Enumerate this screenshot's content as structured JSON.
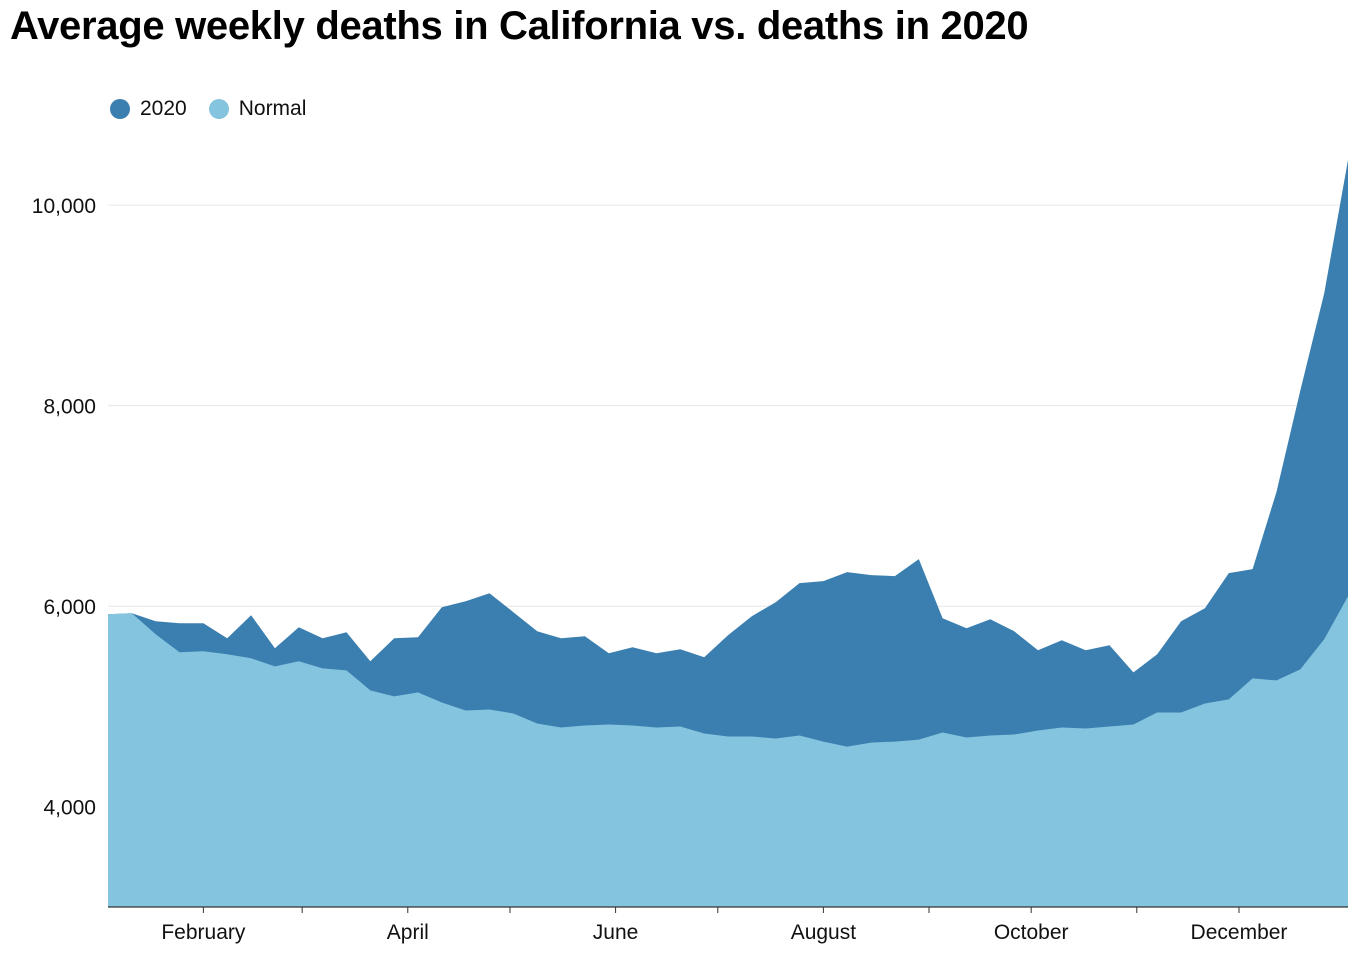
{
  "chart_data": {
    "type": "area",
    "title": "Average weekly deaths in California vs. deaths in 2020",
    "series": [
      {
        "name": "2020",
        "color": "#3a7fb0",
        "values": [
          5920,
          5930,
          5850,
          5830,
          5830,
          5680,
          5910,
          5580,
          5790,
          5680,
          5740,
          5450,
          5680,
          5690,
          5990,
          6050,
          6130,
          5940,
          5750,
          5680,
          5700,
          5530,
          5590,
          5530,
          5570,
          5490,
          5710,
          5900,
          6040,
          6230,
          6250,
          6340,
          6310,
          6300,
          6470,
          5880,
          5780,
          5870,
          5750,
          5560,
          5660,
          5560,
          5610,
          5340,
          5520,
          5850,
          5980,
          6330,
          6370,
          7140,
          8150,
          9120,
          10450
        ]
      },
      {
        "name": "Normal",
        "color": "#84c4df",
        "values": [
          5920,
          5930,
          5720,
          5540,
          5550,
          5520,
          5480,
          5400,
          5450,
          5380,
          5360,
          5160,
          5100,
          5140,
          5040,
          4960,
          4970,
          4930,
          4830,
          4790,
          4810,
          4820,
          4810,
          4790,
          4800,
          4730,
          4700,
          4700,
          4680,
          4710,
          4650,
          4600,
          4640,
          4650,
          4670,
          4740,
          4690,
          4710,
          4720,
          4760,
          4790,
          4780,
          4800,
          4820,
          4940,
          4940,
          5030,
          5070,
          5280,
          5260,
          5370,
          5670,
          6100
        ]
      }
    ],
    "x_start_date": "2020-01-04",
    "x_interval_days": 7,
    "x_tick_labels": [
      "February",
      "April",
      "June",
      "August",
      "October",
      "December"
    ],
    "y_tick_labels": [
      "4,000",
      "6,000",
      "8,000",
      "10,000"
    ],
    "y_ticks": [
      4000,
      6000,
      8000,
      10000
    ],
    "ylim": [
      3000,
      10450
    ],
    "grid": true,
    "legend_position": "top-left"
  }
}
